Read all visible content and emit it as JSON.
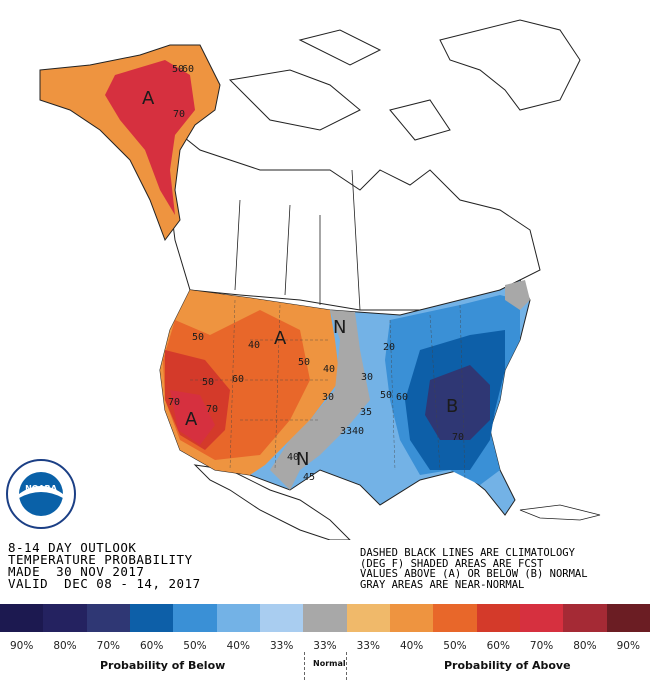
{
  "map": {
    "regions": [
      {
        "name": "alaska-above",
        "category": "above",
        "peak_probability": "70%",
        "letter": "A"
      },
      {
        "name": "west-above",
        "category": "above",
        "peak_probability": "70%",
        "letter": "A"
      },
      {
        "name": "northern-plains-above",
        "category": "above",
        "peak_probability": "50%",
        "letter": "A"
      },
      {
        "name": "east-below",
        "category": "below",
        "peak_probability": "70%",
        "letter": "B"
      },
      {
        "name": "central-normal",
        "category": "near-normal",
        "letter": "N"
      },
      {
        "name": "southern-plains-normal",
        "category": "near-normal",
        "letter": "N"
      }
    ],
    "letters": {
      "above": "A",
      "below": "B",
      "normal": "N"
    },
    "contour_labels": [
      "50",
      "60",
      "70",
      "40",
      "50",
      "60",
      "70",
      "50",
      "40",
      "30",
      "40",
      "60",
      "50",
      "70",
      "20",
      "30",
      "35",
      "40",
      "45",
      "50",
      "60",
      "70",
      "33",
      "33",
      "40"
    ]
  },
  "info": {
    "line1": "8-14 DAY OUTLOOK",
    "line2": "TEMPERATURE PROBABILITY",
    "line3": "MADE  30 NOV 2017",
    "line4": "VALID  DEC 08 - 14, 2017"
  },
  "notes": {
    "line1": "DASHED BLACK LINES ARE CLIMATOLOGY",
    "line2": "(DEG F) SHADED AREAS ARE FCST",
    "line3": "VALUES ABOVE (A) OR BELOW (B) NORMAL",
    "line4": "GRAY AREAS ARE NEAR-NORMAL"
  },
  "legend": {
    "swatches": [
      {
        "label": "90%",
        "color": "#1c1950"
      },
      {
        "label": "80%",
        "color": "#242260"
      },
      {
        "label": "70%",
        "color": "#2f3774"
      },
      {
        "label": "60%",
        "color": "#0d5fa8"
      },
      {
        "label": "50%",
        "color": "#3a90d6"
      },
      {
        "label": "40%",
        "color": "#73b2e6"
      },
      {
        "label": "33%",
        "color": "#a9cdf0"
      },
      {
        "label": "33%",
        "color": "#a8a8a8"
      },
      {
        "label": "33%",
        "color": "#f0b96a"
      },
      {
        "label": "40%",
        "color": "#ee9440"
      },
      {
        "label": "50%",
        "color": "#e8672a"
      },
      {
        "label": "60%",
        "color": "#d43a2a"
      },
      {
        "label": "70%",
        "color": "#d6303f"
      },
      {
        "label": "80%",
        "color": "#a52a35"
      },
      {
        "label": "90%",
        "color": "#6b1d23"
      }
    ],
    "below_caption": "Probability of Below",
    "normal_caption": "Normal",
    "above_caption": "Probability of Above"
  },
  "logo": {
    "text": "NOARA",
    "icon": "noaa-logo"
  }
}
